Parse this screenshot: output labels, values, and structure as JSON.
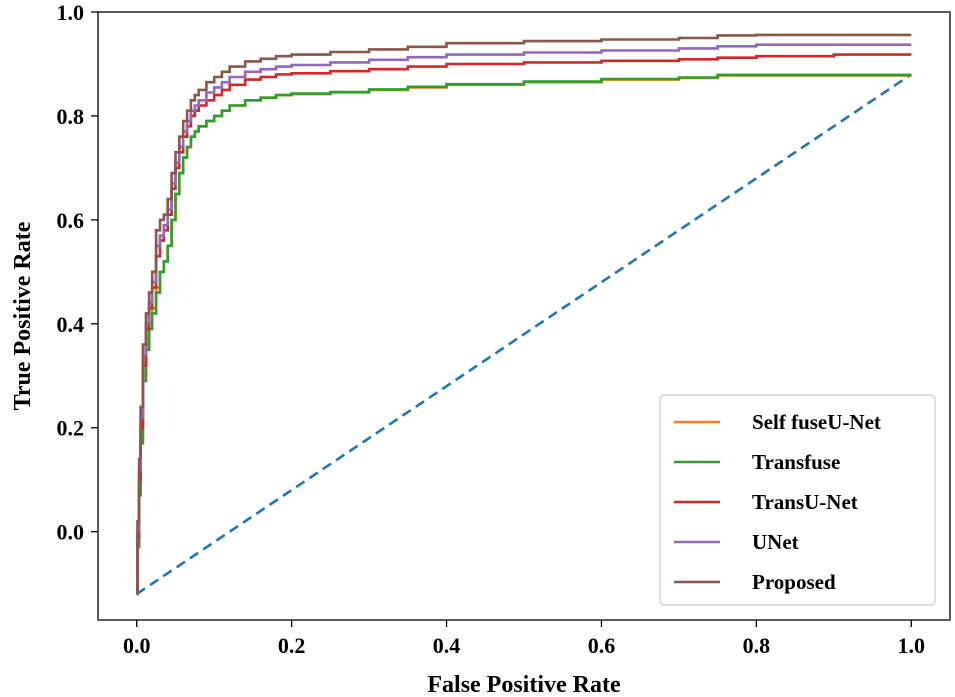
{
  "chart_data": {
    "type": "line",
    "title": "",
    "xlabel": "False Positive Rate",
    "ylabel": "True Positive Rate",
    "xlim": [
      -0.05,
      1.05
    ],
    "ylim": [
      -0.17,
      1.0
    ],
    "xticks": [
      "0.0",
      "0.2",
      "0.4",
      "0.6",
      "0.8",
      "1.0"
    ],
    "yticks": [
      "0.0",
      "0.2",
      "0.4",
      "0.6",
      "0.8",
      "1.0"
    ],
    "grid": false,
    "legend_position": "bottom-right",
    "diagonal": {
      "style": "dashed",
      "color": "#1f77b4",
      "x": [
        0.0,
        1.0
      ],
      "y": [
        -0.12,
        0.88
      ]
    },
    "series": [
      {
        "name": "Self fuseU-Net",
        "color": "#ff7f0e",
        "x": [
          0.0,
          0.001,
          0.003,
          0.005,
          0.008,
          0.012,
          0.016,
          0.02,
          0.025,
          0.03,
          0.035,
          0.04,
          0.045,
          0.05,
          0.055,
          0.06,
          0.065,
          0.07,
          0.075,
          0.08,
          0.09,
          0.1,
          0.11,
          0.12,
          0.14,
          0.16,
          0.18,
          0.2,
          0.25,
          0.3,
          0.35,
          0.4,
          0.5,
          0.6,
          0.7,
          0.75,
          0.8,
          0.9,
          1.0
        ],
        "y": [
          -0.12,
          -0.02,
          0.08,
          0.18,
          0.3,
          0.36,
          0.4,
          0.43,
          0.47,
          0.5,
          0.52,
          0.55,
          0.6,
          0.65,
          0.69,
          0.72,
          0.74,
          0.76,
          0.77,
          0.78,
          0.79,
          0.8,
          0.81,
          0.82,
          0.83,
          0.835,
          0.84,
          0.842,
          0.845,
          0.85,
          0.855,
          0.86,
          0.865,
          0.87,
          0.873,
          0.878,
          0.878,
          0.878,
          0.878
        ]
      },
      {
        "name": "Transfuse",
        "color": "#2ca02c",
        "x": [
          0.0,
          0.001,
          0.003,
          0.005,
          0.008,
          0.012,
          0.016,
          0.02,
          0.025,
          0.03,
          0.035,
          0.04,
          0.045,
          0.05,
          0.055,
          0.06,
          0.065,
          0.07,
          0.075,
          0.08,
          0.09,
          0.1,
          0.11,
          0.12,
          0.14,
          0.16,
          0.18,
          0.2,
          0.25,
          0.3,
          0.35,
          0.4,
          0.5,
          0.6,
          0.7,
          0.75,
          0.8,
          0.9,
          1.0
        ],
        "y": [
          -0.12,
          -0.03,
          0.07,
          0.17,
          0.29,
          0.35,
          0.39,
          0.42,
          0.46,
          0.5,
          0.52,
          0.55,
          0.6,
          0.65,
          0.69,
          0.72,
          0.74,
          0.76,
          0.77,
          0.78,
          0.79,
          0.8,
          0.81,
          0.82,
          0.83,
          0.835,
          0.84,
          0.843,
          0.846,
          0.851,
          0.856,
          0.861,
          0.866,
          0.871,
          0.874,
          0.879,
          0.879,
          0.879,
          0.879
        ]
      },
      {
        "name": "TransU-Net",
        "color": "#d62728",
        "x": [
          0.0,
          0.001,
          0.003,
          0.005,
          0.008,
          0.012,
          0.016,
          0.02,
          0.025,
          0.03,
          0.035,
          0.04,
          0.045,
          0.05,
          0.055,
          0.06,
          0.065,
          0.07,
          0.075,
          0.08,
          0.09,
          0.1,
          0.11,
          0.12,
          0.14,
          0.16,
          0.18,
          0.2,
          0.25,
          0.3,
          0.35,
          0.4,
          0.5,
          0.6,
          0.7,
          0.75,
          0.8,
          0.9,
          1.0
        ],
        "y": [
          -0.12,
          -0.01,
          0.1,
          0.2,
          0.32,
          0.39,
          0.43,
          0.47,
          0.53,
          0.56,
          0.58,
          0.61,
          0.66,
          0.7,
          0.73,
          0.76,
          0.78,
          0.8,
          0.81,
          0.82,
          0.83,
          0.84,
          0.85,
          0.86,
          0.87,
          0.875,
          0.88,
          0.882,
          0.886,
          0.89,
          0.895,
          0.9,
          0.903,
          0.906,
          0.909,
          0.912,
          0.915,
          0.918,
          0.918
        ]
      },
      {
        "name": "UNet",
        "color": "#9467bd",
        "x": [
          0.0,
          0.001,
          0.003,
          0.005,
          0.008,
          0.012,
          0.016,
          0.02,
          0.025,
          0.03,
          0.035,
          0.04,
          0.045,
          0.05,
          0.055,
          0.06,
          0.065,
          0.07,
          0.075,
          0.08,
          0.09,
          0.1,
          0.11,
          0.12,
          0.14,
          0.16,
          0.18,
          0.2,
          0.25,
          0.3,
          0.35,
          0.4,
          0.5,
          0.6,
          0.7,
          0.75,
          0.8,
          0.9,
          1.0
        ],
        "y": [
          -0.12,
          0.0,
          0.12,
          0.22,
          0.34,
          0.4,
          0.44,
          0.48,
          0.55,
          0.57,
          0.59,
          0.62,
          0.67,
          0.71,
          0.74,
          0.77,
          0.79,
          0.81,
          0.82,
          0.83,
          0.845,
          0.855,
          0.865,
          0.875,
          0.885,
          0.89,
          0.895,
          0.898,
          0.903,
          0.908,
          0.913,
          0.918,
          0.922,
          0.926,
          0.93,
          0.934,
          0.937,
          0.937,
          0.937
        ]
      },
      {
        "name": "Proposed",
        "color": "#8c564b",
        "x": [
          0.0,
          0.001,
          0.003,
          0.005,
          0.008,
          0.012,
          0.016,
          0.02,
          0.025,
          0.03,
          0.035,
          0.04,
          0.045,
          0.05,
          0.055,
          0.06,
          0.065,
          0.07,
          0.075,
          0.08,
          0.09,
          0.1,
          0.11,
          0.12,
          0.14,
          0.16,
          0.18,
          0.2,
          0.25,
          0.3,
          0.35,
          0.4,
          0.5,
          0.6,
          0.7,
          0.75,
          0.8,
          0.9,
          1.0
        ],
        "y": [
          -0.12,
          0.02,
          0.14,
          0.24,
          0.36,
          0.42,
          0.46,
          0.5,
          0.58,
          0.6,
          0.61,
          0.64,
          0.69,
          0.73,
          0.76,
          0.79,
          0.81,
          0.83,
          0.84,
          0.85,
          0.865,
          0.875,
          0.885,
          0.895,
          0.905,
          0.91,
          0.915,
          0.918,
          0.923,
          0.928,
          0.933,
          0.94,
          0.944,
          0.947,
          0.95,
          0.955,
          0.956,
          0.956,
          0.956
        ]
      }
    ]
  }
}
